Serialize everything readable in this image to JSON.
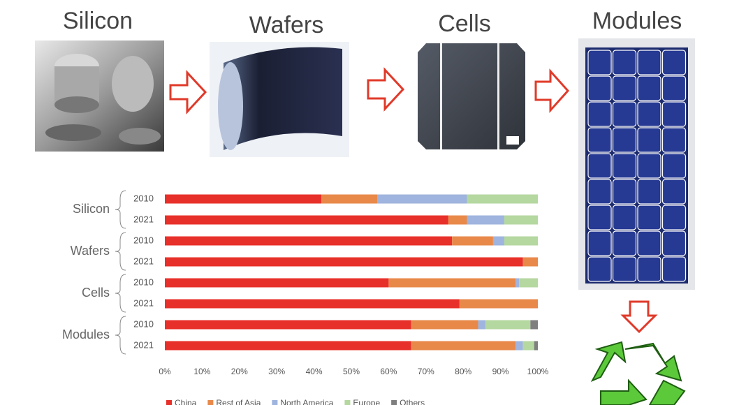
{
  "stages": [
    "Silicon",
    "Wafers",
    "Cells",
    "Modules"
  ],
  "chart_data": {
    "type": "stacked_bar_horizontal",
    "groups": [
      "Silicon",
      "Wafers",
      "Cells",
      "Modules"
    ],
    "categories": [
      "2010",
      "2021",
      "2010",
      "2021",
      "2010",
      "2021",
      "2010",
      "2021"
    ],
    "series": [
      {
        "name": "China",
        "color": "#e8302a",
        "values": [
          42,
          76,
          77,
          96,
          60,
          79,
          66,
          66
        ]
      },
      {
        "name": "Rest of Asia",
        "color": "#e8894a",
        "values": [
          15,
          5,
          11,
          4,
          34,
          21,
          18,
          28
        ]
      },
      {
        "name": "North America",
        "color": "#9fb4de",
        "values": [
          24,
          10,
          3,
          0,
          1,
          0,
          2,
          2
        ]
      },
      {
        "name": "Europe",
        "color": "#b5d7a0",
        "values": [
          19,
          9,
          9,
          0,
          5,
          0,
          12,
          3
        ]
      },
      {
        "name": "Others",
        "color": "#7f7f7f",
        "values": [
          0,
          0,
          0,
          0,
          0,
          0,
          2,
          1
        ]
      }
    ],
    "xlim": [
      0,
      100
    ],
    "xticks": [
      {
        "value": 0,
        "label": "0%"
      },
      {
        "value": 10,
        "label": "10%"
      },
      {
        "value": 20,
        "label": "20%"
      },
      {
        "value": 30,
        "label": "30%"
      },
      {
        "value": 40,
        "label": "40%"
      },
      {
        "value": 50,
        "label": "50%"
      },
      {
        "value": 60,
        "label": "60%"
      },
      {
        "value": 70,
        "label": "70%"
      },
      {
        "value": 80,
        "label": "80%"
      },
      {
        "value": 90,
        "label": "90%"
      },
      {
        "value": 100,
        "label": "100%"
      }
    ],
    "grid": false
  }
}
